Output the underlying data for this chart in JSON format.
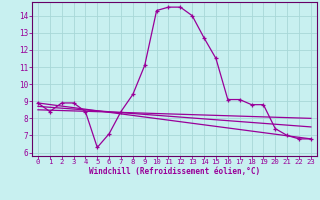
{
  "xlabel": "Windchill (Refroidissement éolien,°C)",
  "background_color": "#c8f0f0",
  "grid_color": "#a8d8d8",
  "line_color": "#990099",
  "spine_color": "#660066",
  "xlim": [
    -0.5,
    23.5
  ],
  "ylim": [
    5.8,
    14.8
  ],
  "yticks": [
    6,
    7,
    8,
    9,
    10,
    11,
    12,
    13,
    14
  ],
  "xticks": [
    0,
    1,
    2,
    3,
    4,
    5,
    6,
    7,
    8,
    9,
    10,
    11,
    12,
    13,
    14,
    15,
    16,
    17,
    18,
    19,
    20,
    21,
    22,
    23
  ],
  "series1_x": [
    0,
    1,
    2,
    3,
    4,
    5,
    6,
    7,
    8,
    9,
    10,
    11,
    12,
    13,
    14,
    15,
    16,
    17,
    18,
    19,
    20,
    21,
    22,
    23
  ],
  "series1_y": [
    8.9,
    8.4,
    8.9,
    8.9,
    8.4,
    6.3,
    7.1,
    8.4,
    9.4,
    11.1,
    14.3,
    14.5,
    14.5,
    14.0,
    12.7,
    11.5,
    9.1,
    9.1,
    8.8,
    8.8,
    7.4,
    7.0,
    6.8,
    6.8
  ],
  "series2_x": [
    0,
    23
  ],
  "series2_y": [
    8.9,
    6.8
  ],
  "series3_x": [
    0,
    23
  ],
  "series3_y": [
    8.7,
    7.5
  ],
  "series4_x": [
    0,
    23
  ],
  "series4_y": [
    8.5,
    8.0
  ]
}
